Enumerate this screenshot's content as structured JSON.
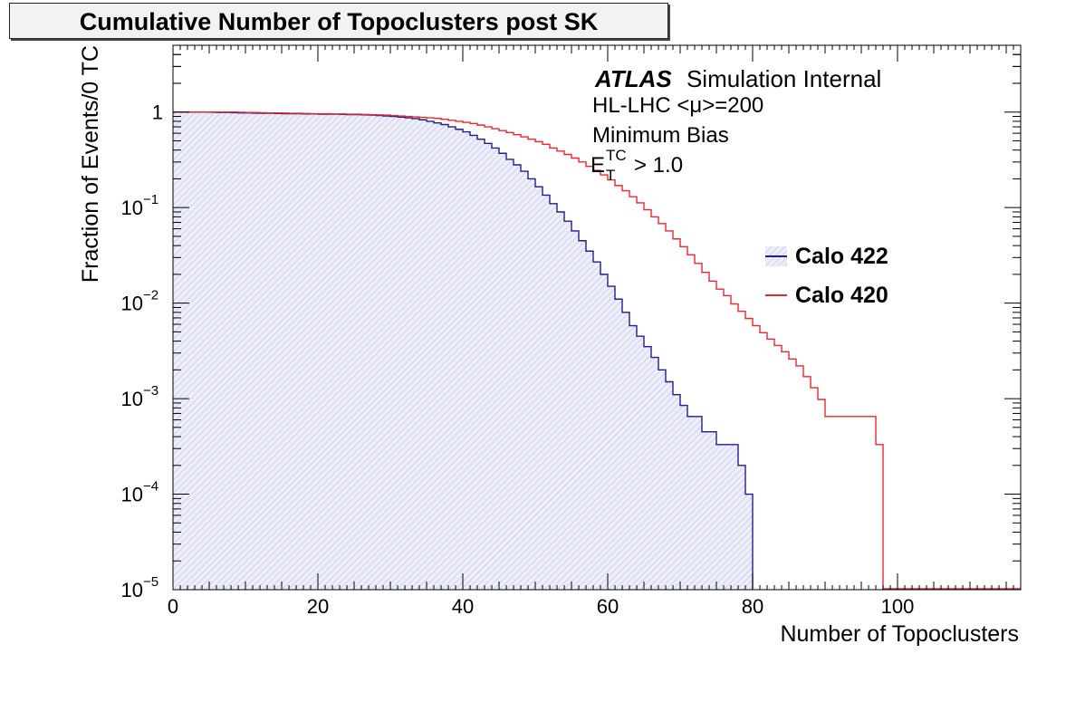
{
  "chart_data": {
    "type": "line",
    "title": "Cumulative Number of Topoclusters post SK",
    "xlabel": "Number of Topoclusters",
    "ylabel": "Fraction of Events/0 TC",
    "xlim": [
      0,
      117
    ],
    "ylim": [
      1e-05,
      5
    ],
    "yscale": "log",
    "xticks": [
      {
        "value": 0,
        "label": "0"
      },
      {
        "value": 20,
        "label": "20"
      },
      {
        "value": 40,
        "label": "40"
      },
      {
        "value": 60,
        "label": "60"
      },
      {
        "value": 80,
        "label": "80"
      },
      {
        "value": 100,
        "label": "100"
      }
    ],
    "yticks": [
      {
        "value": 1,
        "mant": "1",
        "exp": ""
      },
      {
        "value": 0.1,
        "mant": "10",
        "exp": "−1"
      },
      {
        "value": 0.01,
        "mant": "10",
        "exp": "−2"
      },
      {
        "value": 0.001,
        "mant": "10",
        "exp": "−3"
      },
      {
        "value": 0.0001,
        "mant": "10",
        "exp": "−4"
      },
      {
        "value": 1e-05,
        "mant": "10",
        "exp": "−5"
      }
    ],
    "annotations": {
      "atlas": "ATLAS",
      "atlas_status": "Simulation Internal",
      "line2": "HL-LHC <μ>=200",
      "line3": "Minimum Bias",
      "et_main": "E",
      "et_sup": "TC",
      "et_sub": "T",
      "et_rest": "> 1.0"
    },
    "legend_position": "right",
    "series": [
      {
        "name": "Calo 422",
        "color": "#1f1f8c",
        "fill": "#dcdcf5",
        "x": [
          0,
          1,
          2,
          3,
          4,
          5,
          6,
          7,
          8,
          9,
          10,
          11,
          12,
          13,
          14,
          15,
          16,
          17,
          18,
          19,
          20,
          21,
          22,
          23,
          24,
          25,
          26,
          27,
          28,
          29,
          30,
          31,
          32,
          33,
          34,
          35,
          36,
          37,
          38,
          39,
          40,
          41,
          42,
          43,
          44,
          45,
          46,
          47,
          48,
          49,
          50,
          51,
          52,
          53,
          54,
          55,
          56,
          57,
          58,
          59,
          60,
          61,
          62,
          63,
          64,
          65,
          66,
          67,
          68,
          69,
          70,
          71,
          72,
          73,
          74,
          75,
          76,
          77,
          78,
          79
        ],
        "values": [
          1.0,
          1.0,
          1.0,
          1.0,
          1.0,
          0.995,
          0.99,
          0.99,
          0.985,
          0.98,
          0.98,
          0.975,
          0.97,
          0.97,
          0.965,
          0.96,
          0.96,
          0.96,
          0.955,
          0.955,
          0.95,
          0.95,
          0.95,
          0.945,
          0.94,
          0.94,
          0.935,
          0.93,
          0.92,
          0.91,
          0.9,
          0.885,
          0.87,
          0.855,
          0.83,
          0.8,
          0.77,
          0.74,
          0.7,
          0.66,
          0.62,
          0.57,
          0.52,
          0.47,
          0.42,
          0.37,
          0.32,
          0.28,
          0.24,
          0.2,
          0.165,
          0.135,
          0.11,
          0.09,
          0.072,
          0.057,
          0.045,
          0.035,
          0.027,
          0.02,
          0.015,
          0.011,
          0.008,
          0.0058,
          0.0045,
          0.0035,
          0.0027,
          0.002,
          0.0015,
          0.0011,
          0.00085,
          0.00065,
          0.00065,
          0.00045,
          0.00045,
          0.00033,
          0.00033,
          0.00033,
          0.0002,
          0.0001
        ]
      },
      {
        "name": "Calo 420",
        "color": "#e8282e",
        "fill": "none",
        "x": [
          0,
          1,
          2,
          3,
          4,
          5,
          6,
          7,
          8,
          9,
          10,
          11,
          12,
          13,
          14,
          15,
          16,
          17,
          18,
          19,
          20,
          21,
          22,
          23,
          24,
          25,
          26,
          27,
          28,
          29,
          30,
          31,
          32,
          33,
          34,
          35,
          36,
          37,
          38,
          39,
          40,
          41,
          42,
          43,
          44,
          45,
          46,
          47,
          48,
          49,
          50,
          51,
          52,
          53,
          54,
          55,
          56,
          57,
          58,
          59,
          60,
          61,
          62,
          63,
          64,
          65,
          66,
          67,
          68,
          69,
          70,
          71,
          72,
          73,
          74,
          75,
          76,
          77,
          78,
          79,
          80,
          81,
          82,
          83,
          84,
          85,
          86,
          87,
          88,
          89,
          90,
          91,
          92,
          93,
          94,
          95,
          96,
          97
        ],
        "values": [
          1.0,
          1.0,
          1.0,
          1.0,
          1.0,
          1.0,
          1.0,
          1.0,
          1.0,
          0.995,
          0.99,
          0.99,
          0.985,
          0.98,
          0.98,
          0.975,
          0.97,
          0.97,
          0.965,
          0.96,
          0.96,
          0.96,
          0.955,
          0.955,
          0.95,
          0.95,
          0.945,
          0.94,
          0.935,
          0.93,
          0.92,
          0.91,
          0.9,
          0.89,
          0.88,
          0.87,
          0.86,
          0.84,
          0.82,
          0.8,
          0.78,
          0.76,
          0.73,
          0.7,
          0.67,
          0.64,
          0.61,
          0.58,
          0.55,
          0.52,
          0.49,
          0.46,
          0.42,
          0.39,
          0.36,
          0.33,
          0.3,
          0.27,
          0.245,
          0.22,
          0.195,
          0.17,
          0.15,
          0.13,
          0.112,
          0.095,
          0.08,
          0.068,
          0.057,
          0.047,
          0.039,
          0.032,
          0.026,
          0.021,
          0.017,
          0.014,
          0.012,
          0.0098,
          0.0082,
          0.0069,
          0.0058,
          0.0049,
          0.0042,
          0.0036,
          0.0031,
          0.0026,
          0.0022,
          0.0017,
          0.0013,
          0.00098,
          0.00065,
          0.00065,
          0.00065,
          0.00065,
          0.00065,
          0.00065,
          0.00065,
          0.00033
        ]
      }
    ]
  }
}
